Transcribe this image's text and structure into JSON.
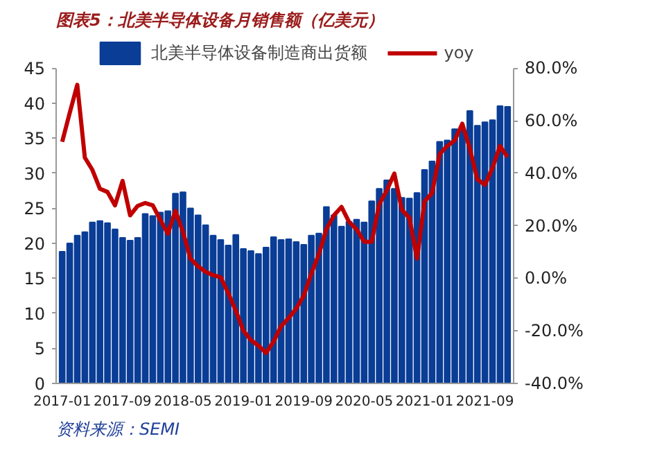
{
  "chart_data": {
    "type": "bar",
    "title": "图表5：北美半导体设备月销售额（亿美元）",
    "categories": [
      "2017-01",
      null,
      null,
      null,
      null,
      null,
      null,
      null,
      "2017-09",
      null,
      null,
      null,
      null,
      null,
      null,
      null,
      "2018-05",
      null,
      null,
      null,
      null,
      null,
      null,
      null,
      "2019-01",
      null,
      null,
      null,
      null,
      null,
      null,
      null,
      "2019-09",
      null,
      null,
      null,
      null,
      null,
      null,
      null,
      "2020-05",
      null,
      null,
      null,
      null,
      null,
      null,
      null,
      "2021-01",
      null,
      null,
      null,
      null,
      null,
      null,
      null,
      "2021-09",
      null,
      null,
      null
    ],
    "series": [
      {
        "name": "北美半导体设备制造商出货额",
        "color": "#0a3d96",
        "values": [
          18.8,
          20.0,
          21.1,
          21.6,
          23.0,
          23.2,
          22.9,
          22.0,
          20.8,
          20.4,
          20.8,
          24.2,
          23.9,
          24.4,
          24.6,
          27.1,
          27.3,
          25.0,
          24.0,
          22.6,
          21.1,
          20.5,
          19.7,
          21.2,
          19.2,
          18.9,
          18.5,
          19.4,
          20.9,
          20.5,
          20.6,
          20.2,
          19.8,
          21.1,
          21.4,
          25.2,
          24.0,
          22.4,
          23.1,
          23.4,
          23.0,
          26.0,
          27.8,
          29.0,
          27.8,
          26.5,
          26.4,
          27.2,
          30.5,
          31.7,
          34.5,
          34.7,
          36.3,
          36.5,
          38.9,
          36.8,
          37.3,
          37.6,
          39.6,
          39.5
        ]
      },
      {
        "name": "yoy",
        "type": "line",
        "axis": "y2",
        "color": "#c00000",
        "values": [
          52,
          63,
          73.7,
          46,
          41.3,
          34.1,
          32.9,
          27.8,
          37.1,
          24.0,
          27.6,
          28.7,
          27.8,
          22.3,
          17.0,
          25.7,
          17.7,
          7.5,
          4.6,
          2.5,
          1.2,
          0.4,
          -5.6,
          -12.3,
          -19.9,
          -23.5,
          -25.6,
          -28.4,
          -24.1,
          -18.2,
          -15.1,
          -11.5,
          -6.6,
          1.8,
          9.2,
          18.7,
          24.0,
          27.2,
          21.5,
          18.7,
          13.9,
          13.9,
          28.2,
          33.5,
          39.9,
          26.1,
          23.0,
          7.5,
          29.3,
          32.5,
          47.3,
          50.4,
          52.5,
          58.9,
          49.4,
          37.7,
          35.6,
          42.0,
          50.4,
          46.2
        ]
      }
    ],
    "ylim": [
      0,
      45
    ],
    "yticks": [
      0,
      5,
      10,
      15,
      20,
      25,
      30,
      35,
      40,
      45
    ],
    "y2lim": [
      -40,
      80
    ],
    "y2ticks": [
      {
        "value": -40,
        "label": "-40.0%"
      },
      {
        "value": -20,
        "label": "-20.0%"
      },
      {
        "value": 0,
        "label": "0.0%"
      },
      {
        "value": 20,
        "label": "20.0%"
      },
      {
        "value": 40,
        "label": "40.0%"
      },
      {
        "value": 60,
        "label": "60.0%"
      },
      {
        "value": 80,
        "label": "80.0%"
      }
    ],
    "grid": false,
    "legend": "top",
    "annotations": [
      "资料来源：SEMI"
    ]
  }
}
